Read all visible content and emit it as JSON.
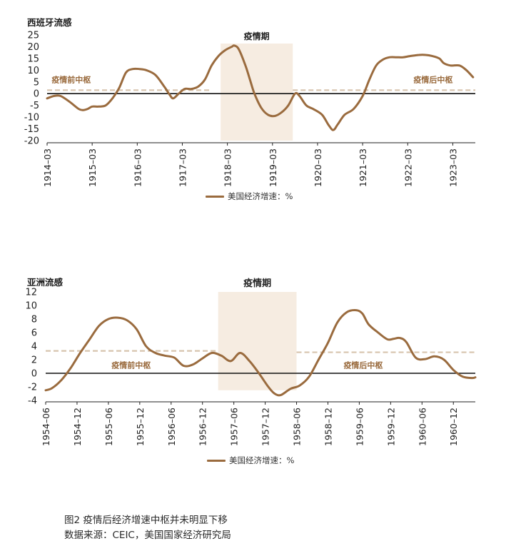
{
  "colors": {
    "series": "#9a6b3e",
    "pivot": "#d7c4ad",
    "pandemic_band": "#f6ece1",
    "pivot_label": "#9a6b3e"
  },
  "caption": {
    "line1": "图2 疫情后经济增速中枢并未明显下移",
    "line2": "数据来源：CEIC，美国国家经济研究局"
  },
  "chart_data": [
    {
      "type": "line",
      "title": "西班牙流感",
      "legend": "美国经济增速：%",
      "legend_position": "bottom",
      "grid": false,
      "ylim": [
        -20,
        25
      ],
      "yticks": [
        25,
        20,
        15,
        10,
        5,
        0,
        -5,
        -10,
        -15,
        -20
      ],
      "xlim": [
        1914.0,
        1923.5
      ],
      "x_ticks": [
        {
          "x": 1914.0,
          "label": "1914–03"
        },
        {
          "x": 1915.0,
          "label": "1915–03"
        },
        {
          "x": 1916.0,
          "label": "1916–03"
        },
        {
          "x": 1917.0,
          "label": "1917–03"
        },
        {
          "x": 1918.0,
          "label": "1918–03"
        },
        {
          "x": 1919.0,
          "label": "1919–03"
        },
        {
          "x": 1920.0,
          "label": "1920–03"
        },
        {
          "x": 1921.0,
          "label": "1921–03"
        },
        {
          "x": 1922.0,
          "label": "1922–03"
        },
        {
          "x": 1923.0,
          "label": "1923–03"
        }
      ],
      "pandemic_band": {
        "x0": 1917.85,
        "x1": 1919.45,
        "ylow": -20,
        "label": "疫情期"
      },
      "pivots": [
        {
          "x0": 1914.0,
          "x1": 1917.65,
          "y": 1.5,
          "label": "疫情前中枢",
          "label_x": 1914.1,
          "label_y": 6
        },
        {
          "x0": 1919.45,
          "x1": 1923.5,
          "y": 1.5,
          "label": "疫情后中枢",
          "label_x": 1923.0,
          "label_y": 6
        }
      ],
      "series": [
        {
          "name": "美国经济增速：%",
          "points": [
            [
              1914.0,
              -2
            ],
            [
              1914.15,
              -1
            ],
            [
              1914.3,
              -1
            ],
            [
              1914.5,
              -3.5
            ],
            [
              1914.7,
              -6.5
            ],
            [
              1914.8,
              -7
            ],
            [
              1914.9,
              -6.5
            ],
            [
              1915.0,
              -5.5
            ],
            [
              1915.15,
              -5.5
            ],
            [
              1915.3,
              -5
            ],
            [
              1915.45,
              -2
            ],
            [
              1915.6,
              2.5
            ],
            [
              1915.75,
              9
            ],
            [
              1915.9,
              10.5
            ],
            [
              1916.05,
              10.5
            ],
            [
              1916.2,
              10
            ],
            [
              1916.4,
              8
            ],
            [
              1916.6,
              3
            ],
            [
              1916.72,
              -0.5
            ],
            [
              1916.8,
              -2
            ],
            [
              1916.92,
              0
            ],
            [
              1917.05,
              2
            ],
            [
              1917.2,
              2
            ],
            [
              1917.35,
              3
            ],
            [
              1917.5,
              6
            ],
            [
              1917.65,
              12
            ],
            [
              1917.8,
              16
            ],
            [
              1917.95,
              18.5
            ],
            [
              1918.1,
              20
            ],
            [
              1918.15,
              20.5
            ],
            [
              1918.25,
              19
            ],
            [
              1918.4,
              12
            ],
            [
              1918.5,
              6
            ],
            [
              1918.6,
              0
            ],
            [
              1918.75,
              -6
            ],
            [
              1918.9,
              -9
            ],
            [
              1919.05,
              -9.5
            ],
            [
              1919.2,
              -8
            ],
            [
              1919.35,
              -5
            ],
            [
              1919.5,
              0
            ],
            [
              1919.6,
              -1
            ],
            [
              1919.75,
              -5
            ],
            [
              1919.9,
              -6.5
            ],
            [
              1920.1,
              -9
            ],
            [
              1920.25,
              -13.5
            ],
            [
              1920.35,
              -15.5
            ],
            [
              1920.45,
              -13
            ],
            [
              1920.6,
              -9
            ],
            [
              1920.8,
              -6.5
            ],
            [
              1921.0,
              -1
            ],
            [
              1921.15,
              6
            ],
            [
              1921.3,
              12
            ],
            [
              1921.45,
              14.5
            ],
            [
              1921.6,
              15.5
            ],
            [
              1921.75,
              15.5
            ],
            [
              1921.9,
              15.5
            ],
            [
              1922.05,
              16
            ],
            [
              1922.25,
              16.5
            ],
            [
              1922.4,
              16.5
            ],
            [
              1922.55,
              16
            ],
            [
              1922.7,
              15
            ],
            [
              1922.8,
              13
            ],
            [
              1922.95,
              12
            ],
            [
              1923.15,
              12
            ],
            [
              1923.3,
              10
            ],
            [
              1923.45,
              7
            ]
          ]
        }
      ]
    },
    {
      "type": "line",
      "title": "亚洲流感",
      "legend": "美国经济增速：%",
      "legend_position": "bottom",
      "grid": false,
      "ylim": [
        -4,
        12
      ],
      "yticks": [
        12,
        10,
        8,
        6,
        4,
        2,
        0,
        -2,
        -4
      ],
      "xlim": [
        1954.4,
        1961.25
      ],
      "x_ticks": [
        {
          "x": 1954.4,
          "label": "1954–06"
        },
        {
          "x": 1954.9,
          "label": "1954–12"
        },
        {
          "x": 1955.4,
          "label": "1955–06"
        },
        {
          "x": 1955.9,
          "label": "1955–12"
        },
        {
          "x": 1956.4,
          "label": "1956–06"
        },
        {
          "x": 1956.9,
          "label": "1956–12"
        },
        {
          "x": 1957.4,
          "label": "1957–06"
        },
        {
          "x": 1957.9,
          "label": "1957–12"
        },
        {
          "x": 1958.4,
          "label": "1958–06"
        },
        {
          "x": 1958.9,
          "label": "1958–12"
        },
        {
          "x": 1959.4,
          "label": "1959–06"
        },
        {
          "x": 1959.9,
          "label": "1959–12"
        },
        {
          "x": 1960.4,
          "label": "1960–06"
        },
        {
          "x": 1960.9,
          "label": "1960–12"
        }
      ],
      "pandemic_band": {
        "x0": 1957.15,
        "x1": 1958.4,
        "ylow": -2.5,
        "label": "疫情期"
      },
      "pivots": [
        {
          "x0": 1954.4,
          "x1": 1957.15,
          "y": 3.3,
          "label": "疫情前中枢",
          "label_x": 1955.45,
          "label_y": 1.2
        },
        {
          "x0": 1958.4,
          "x1": 1961.25,
          "y": 3.1,
          "label": "疫情后中枢",
          "label_x": 1959.15,
          "label_y": 1.2
        }
      ],
      "series": [
        {
          "name": "美国经济增速：%",
          "points": [
            [
              1954.4,
              -2.5
            ],
            [
              1954.5,
              -2.2
            ],
            [
              1954.65,
              -1
            ],
            [
              1954.8,
              0.8
            ],
            [
              1954.95,
              3
            ],
            [
              1955.1,
              5
            ],
            [
              1955.25,
              7
            ],
            [
              1955.4,
              8
            ],
            [
              1955.55,
              8.2
            ],
            [
              1955.7,
              7.8
            ],
            [
              1955.85,
              6.5
            ],
            [
              1956.0,
              4
            ],
            [
              1956.15,
              3
            ],
            [
              1956.3,
              2.6
            ],
            [
              1956.45,
              2.3
            ],
            [
              1956.6,
              1.1
            ],
            [
              1956.75,
              1.3
            ],
            [
              1956.9,
              2.2
            ],
            [
              1957.05,
              3
            ],
            [
              1957.2,
              2.6
            ],
            [
              1957.35,
              1.8
            ],
            [
              1957.5,
              3
            ],
            [
              1957.65,
              1.8
            ],
            [
              1957.8,
              0
            ],
            [
              1957.95,
              -2
            ],
            [
              1958.05,
              -3
            ],
            [
              1958.15,
              -3.2
            ],
            [
              1958.3,
              -2.3
            ],
            [
              1958.45,
              -1.8
            ],
            [
              1958.6,
              -0.5
            ],
            [
              1958.75,
              2
            ],
            [
              1958.9,
              4.5
            ],
            [
              1959.05,
              7.5
            ],
            [
              1959.2,
              9
            ],
            [
              1959.35,
              9.3
            ],
            [
              1959.45,
              8.8
            ],
            [
              1959.55,
              7.2
            ],
            [
              1959.7,
              6
            ],
            [
              1959.85,
              5
            ],
            [
              1959.95,
              5.1
            ],
            [
              1960.05,
              5.2
            ],
            [
              1960.15,
              4.6
            ],
            [
              1960.3,
              2.3
            ],
            [
              1960.45,
              2.1
            ],
            [
              1960.6,
              2.5
            ],
            [
              1960.75,
              2
            ],
            [
              1960.9,
              0.5
            ],
            [
              1961.05,
              -0.5
            ],
            [
              1961.2,
              -0.7
            ],
            [
              1961.25,
              -0.6
            ]
          ]
        }
      ]
    }
  ]
}
